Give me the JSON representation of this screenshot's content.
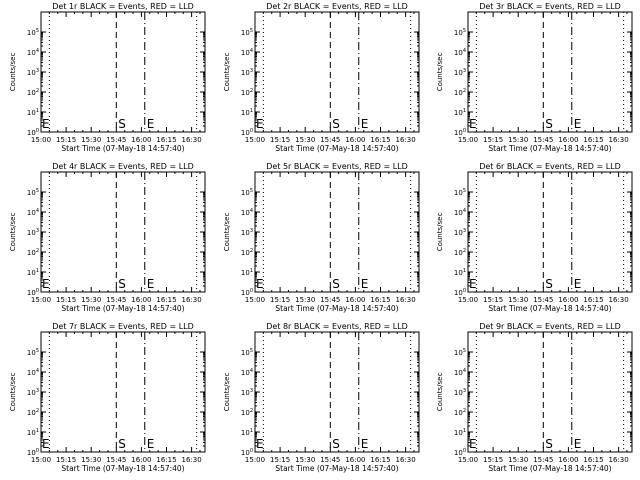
{
  "chart_data": {
    "type": "line",
    "layout": "3x3 grid",
    "xlabel": "Start Time (07-May-18 14:57:40)",
    "ylabel": "Counts/sec",
    "x_tick_labels": [
      "15:00",
      "15:15",
      "15:30",
      "15:45",
      "16:00",
      "16:15",
      "16:30"
    ],
    "x_tick_minutes_after_1500": [
      0,
      15,
      30,
      45,
      60,
      75,
      90
    ],
    "xlim_minutes_after_1500": [
      0,
      98
    ],
    "y_scale": "log",
    "ylim": [
      1,
      1000000
    ],
    "y_tick_labels": [
      {
        "base": "10",
        "exp": "0"
      },
      {
        "base": "10",
        "exp": "1"
      },
      {
        "base": "10",
        "exp": "2"
      },
      {
        "base": "10",
        "exp": "3"
      },
      {
        "base": "10",
        "exp": "4"
      },
      {
        "base": "10",
        "exp": "5"
      }
    ],
    "grid": false,
    "series_colors": {
      "events": "#000000",
      "lld": "#ff0000"
    },
    "markers": [
      {
        "label": "E",
        "x_minutes": 0
      },
      {
        "label": "S",
        "x_minutes": 45
      },
      {
        "label": "E",
        "x_minutes": 62
      }
    ],
    "vertical_lines": [
      {
        "style": "dotted",
        "x_minutes": 5
      },
      {
        "style": "dashed",
        "x_minutes": 45
      },
      {
        "style": "dashdot",
        "x_minutes": 62
      },
      {
        "style": "dotted",
        "x_minutes": 93
      }
    ],
    "panels": [
      {
        "title": "Det 1r BLACK = Events, RED = LLD"
      },
      {
        "title": "Det 2r BLACK = Events, RED = LLD"
      },
      {
        "title": "Det 3r BLACK = Events, RED = LLD"
      },
      {
        "title": "Det 4r BLACK = Events, RED = LLD"
      },
      {
        "title": "Det 5r BLACK = Events, RED = LLD"
      },
      {
        "title": "Det 6r BLACK = Events, RED = LLD"
      },
      {
        "title": "Det 7r BLACK = Events, RED = LLD"
      },
      {
        "title": "Det 8r BLACK = Events, RED = LLD"
      },
      {
        "title": "Det 9r BLACK = Events, RED = LLD"
      }
    ]
  }
}
